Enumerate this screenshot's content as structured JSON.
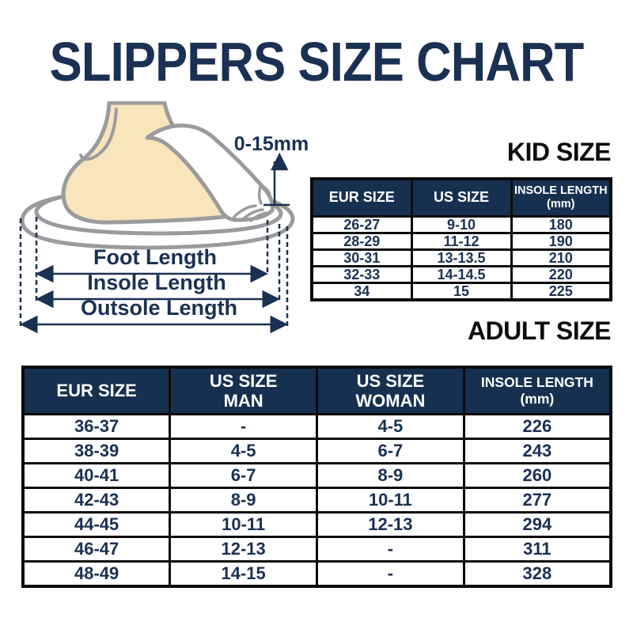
{
  "page": {
    "title": "SLIPPERS SIZE CHART"
  },
  "diagram": {
    "toe_gap_label": "0-15mm",
    "measurements": [
      "Foot Length",
      "Insole Length",
      "Outsole Length"
    ]
  },
  "chart_data": [
    {
      "type": "table",
      "title": "KID SIZE",
      "columns": [
        "EUR SIZE",
        "US SIZE",
        "INSOLE LENGTH (mm)"
      ],
      "header_lines": [
        [
          "EUR SIZE"
        ],
        [
          "US SIZE"
        ],
        [
          "INSOLE LENGTH",
          "(mm)"
        ]
      ],
      "rows": [
        [
          "26-27",
          "9-10",
          "180"
        ],
        [
          "28-29",
          "11-12",
          "190"
        ],
        [
          "30-31",
          "13-13.5",
          "210"
        ],
        [
          "32-33",
          "14-14.5",
          "220"
        ],
        [
          "34",
          "15",
          "225"
        ]
      ]
    },
    {
      "type": "table",
      "title": "ADULT SIZE",
      "columns": [
        "EUR SIZE",
        "US SIZE MAN",
        "US SIZE WOMAN",
        "INSOLE LENGTH (mm)"
      ],
      "header_lines": [
        [
          "EUR SIZE"
        ],
        [
          "US SIZE",
          "MAN"
        ],
        [
          "US SIZE",
          "WOMAN"
        ],
        [
          "INSOLE LENGTH",
          "(mm)"
        ]
      ],
      "rows": [
        [
          "36-37",
          "-",
          "4-5",
          "226"
        ],
        [
          "38-39",
          "4-5",
          "6-7",
          "243"
        ],
        [
          "40-41",
          "6-7",
          "8-9",
          "260"
        ],
        [
          "42-43",
          "8-9",
          "10-11",
          "277"
        ],
        [
          "44-45",
          "10-11",
          "12-13",
          "294"
        ],
        [
          "46-47",
          "12-13",
          "-",
          "311"
        ],
        [
          "48-49",
          "14-15",
          "-",
          "328"
        ]
      ]
    }
  ],
  "colors": {
    "navy_text": "#1B3153",
    "header_background": "#163050",
    "table_border": "#0b0b0b",
    "heading_black": "#0d0d0d",
    "foot_fill": "#F8E5BC",
    "outline_gray": "#9B9B9B"
  }
}
